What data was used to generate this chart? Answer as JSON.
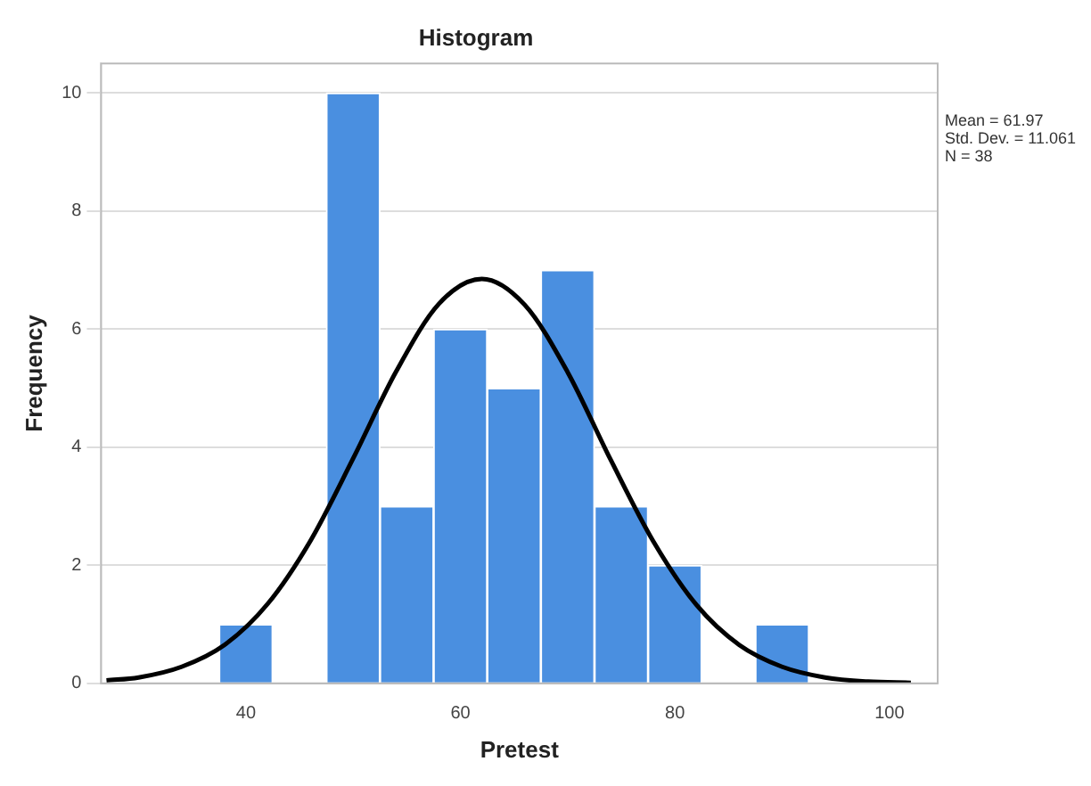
{
  "chart_data": {
    "type": "histogram",
    "title": "Histogram",
    "xlabel": "Pretest",
    "ylabel": "Frequency",
    "bins": [
      37.5,
      42.5,
      47.5,
      52.5,
      57.5,
      62.5,
      67.5,
      72.5,
      77.5,
      82.5,
      87.5,
      92.5
    ],
    "values": [
      1,
      0,
      10,
      3,
      6,
      5,
      7,
      3,
      2,
      0,
      1
    ],
    "color": "#4a8fe0",
    "series": [
      {
        "type": "line",
        "color": "#000000",
        "x": [
          27,
          30,
          34,
          38,
          42,
          46,
          50,
          54,
          58,
          62,
          66,
          70,
          74,
          78,
          82,
          86,
          90,
          94,
          98,
          102
        ],
        "values": [
          0.05,
          0.1,
          0.28,
          0.65,
          1.34,
          2.41,
          3.81,
          5.28,
          6.43,
          6.85,
          6.41,
          5.27,
          3.79,
          2.4,
          1.33,
          0.65,
          0.28,
          0.1,
          0.03,
          0.01
        ]
      }
    ],
    "xlim": [
      26.5,
      104.5
    ],
    "xticks": [
      40,
      60,
      80,
      100
    ],
    "ylim": [
      0,
      10.5
    ],
    "yticks": [
      0,
      2,
      4,
      6,
      8,
      10
    ],
    "grid": "y",
    "annotations": [
      "Mean = 61.97",
      "Std. Dev. = 11.061",
      "N = 38"
    ]
  }
}
